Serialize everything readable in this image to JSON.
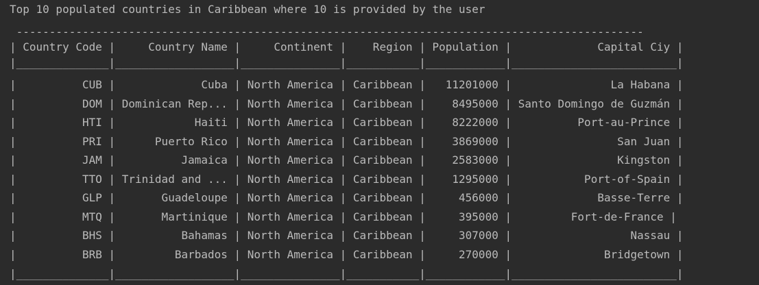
{
  "console": {
    "heading": "Top 10 populated countries in Caribbean where 10 is provided by the user",
    "table_top_border": " -----------------------------------------------------------------------------------------------",
    "table_header": "| Country Code |     Country Name |     Continent |    Region | Population |             Capital Ciy |",
    "table_header_separator": "|______________|__________________|_______________|___________|____________|_________________________|",
    "rows": [
      "|          CUB |             Cuba | North America | Caribbean |   11201000 |               La Habana |",
      "|          DOM | Dominican Rep... | North America | Caribbean |    8495000 | Santo Domingo de Guzmán |",
      "|          HTI |            Haiti | North America | Caribbean |    8222000 |          Port-au-Prince |",
      "|          PRI |      Puerto Rico | North America | Caribbean |    3869000 |                San Juan |",
      "|          JAM |          Jamaica | North America | Caribbean |    2583000 |                Kingston |",
      "|          TTO | Trinidad and ... | North America | Caribbean |    1295000 |           Port-of-Spain |",
      "|          GLP |       Guadeloupe | North America | Caribbean |     456000 |             Basse-Terre |",
      "|          MTQ |       Martinique | North America | Caribbean |     395000 |         Fort-de-France |",
      "|          BHS |          Bahamas | North America | Caribbean |     307000 |                  Nassau |",
      "|          BRB |         Barbados | North America | Caribbean |     270000 |              Bridgetown |"
    ],
    "table_bottom_border": "|______________|__________________|_______________|___________|____________|_________________________|"
  }
}
